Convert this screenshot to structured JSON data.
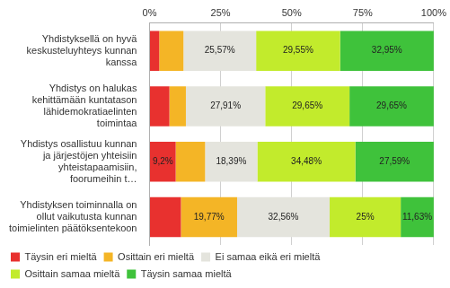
{
  "chart_data": {
    "type": "bar",
    "orientation": "horizontal",
    "stacked": true,
    "grid": true,
    "legend": "bottom",
    "data_labels": true,
    "categories": [
      "Yhdistyksellä on hyvä keskusteluyhteys kunnan kanssa",
      "Yhdistys on halukas kehittämään kuntatason lähidemokratiaelinten toimintaa",
      "Yhdistys osallistuu kunnan ja järjestöjen yhteisiin yhteistapaamisiin, foorumeihin t…",
      "Yhdistyksen toiminnalla on ollut vaikutusta kunnan toimielinten päätöksentekoon"
    ],
    "xlim": [
      0,
      100
    ],
    "xticks": [
      {
        "value": 0,
        "label": "0%"
      },
      {
        "value": 25,
        "label": "25%"
      },
      {
        "value": 50,
        "label": "50%"
      },
      {
        "value": 75,
        "label": "75%"
      },
      {
        "value": 100,
        "label": "100%"
      }
    ],
    "series": [
      {
        "name": "Täysin eri mieltä",
        "color": "#e8312f",
        "values": [
          3.41,
          6.98,
          9.2,
          11.04
        ],
        "value_labels": [
          null,
          null,
          "9,2%",
          null
        ]
      },
      {
        "name": "Osittain eri mieltä",
        "color": "#f4b526",
        "values": [
          8.52,
          5.81,
          10.34,
          19.77
        ],
        "value_labels": [
          null,
          null,
          null,
          "19,77%"
        ]
      },
      {
        "name": "Ei samaa eikä eri mieltä",
        "color": "#e4e4dd",
        "values": [
          25.57,
          27.91,
          18.39,
          32.56
        ],
        "value_labels": [
          "25,57%",
          "27,91%",
          "18,39%",
          "32,56%"
        ]
      },
      {
        "name": "Osittain samaa mieltä",
        "color": "#c2eb2c",
        "values": [
          29.55,
          29.65,
          34.48,
          25
        ],
        "value_labels": [
          "29,55%",
          "29,65%",
          "34,48%",
          "25%"
        ]
      },
      {
        "name": "Täysin samaa mieltä",
        "color": "#3fc23b",
        "values": [
          32.95,
          29.65,
          27.59,
          11.63
        ],
        "value_labels": [
          "32,95%",
          "29,65%",
          "27,59%",
          "11,63%"
        ]
      }
    ]
  }
}
